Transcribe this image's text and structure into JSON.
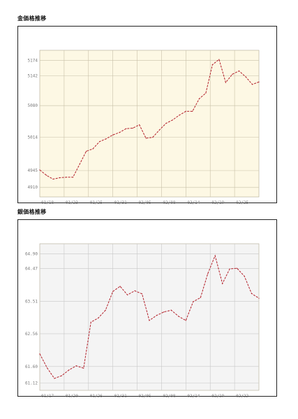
{
  "gold": {
    "heading": "金価格推移",
    "chart_data": {
      "type": "line",
      "title": "",
      "xlabel": "",
      "ylabel": "",
      "x_ticks": [
        "01/18",
        "01/23",
        "01/25",
        "01/31",
        "02/05",
        "02/08",
        "02/14",
        "02/19",
        "02/25"
      ],
      "y_ticks": [
        {
          "label": "4910",
          "value": 4910
        },
        {
          "label": "4945",
          "value": 4945
        },
        {
          "label": "5014",
          "value": 5014
        },
        {
          "label": "5080",
          "value": 5080
        },
        {
          "label": "5142",
          "value": 5142
        },
        {
          "label": "5174",
          "value": 5174
        }
      ],
      "ylim": [
        4890,
        5195
      ],
      "series": [
        {
          "values": [
            4946,
            4935,
            4927,
            4930,
            4931,
            4931,
            4958,
            4985,
            4990,
            5005,
            5011,
            5019,
            5024,
            5032,
            5033,
            5040,
            5012,
            5014,
            5029,
            5043,
            5050,
            5060,
            5068,
            5068,
            5094,
            5106,
            5165,
            5176,
            5128,
            5145,
            5152,
            5140,
            5124,
            5129
          ]
        }
      ],
      "grid": true,
      "colors": {
        "line": "#b3202a",
        "plot_bg": "#fdf8e4",
        "grid": "#c8c0a8"
      }
    }
  },
  "silver": {
    "heading": "銀価格推移",
    "chart_data": {
      "type": "line",
      "title": "",
      "xlabel": "",
      "ylabel": "",
      "x_ticks": [
        "01/17",
        "01/20",
        "01/26",
        "01/31",
        "02/05",
        "02/08",
        "02/14",
        "02/19",
        "02/22"
      ],
      "y_ticks": [
        {
          "label": "61.12",
          "value": 61.12
        },
        {
          "label": "61.60",
          "value": 61.6
        },
        {
          "label": "62.56",
          "value": 62.56
        },
        {
          "label": "63.51",
          "value": 63.51
        },
        {
          "label": "64.47",
          "value": 64.47
        },
        {
          "label": "64.90",
          "value": 64.9
        }
      ],
      "ylim": [
        60.9,
        65.2
      ],
      "series": [
        {
          "values": [
            61.97,
            61.56,
            61.25,
            61.33,
            61.5,
            61.62,
            61.55,
            62.9,
            63.02,
            63.25,
            63.8,
            63.95,
            63.7,
            63.82,
            63.73,
            62.95,
            63.1,
            63.2,
            63.25,
            63.07,
            62.95,
            63.5,
            63.62,
            64.32,
            64.85,
            64.03,
            64.46,
            64.48,
            64.25,
            63.74,
            63.6
          ]
        }
      ],
      "grid": true,
      "colors": {
        "line": "#b3202a",
        "plot_bg": "#f4f4f4",
        "grid": "#c8c8c8"
      }
    }
  }
}
